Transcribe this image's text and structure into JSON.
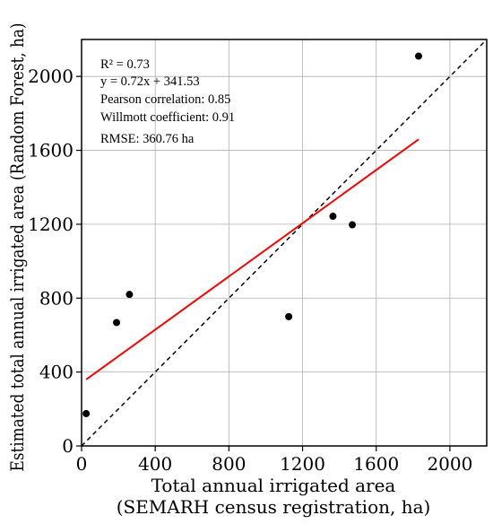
{
  "chart_data": {
    "type": "scatter",
    "xlabel_lines": [
      "Total annual irrigated area",
      "(SEMARH census registration, ha)"
    ],
    "ylabel": "Estimated total annual irrigated area (Random Forest, ha)",
    "xlim": [
      0,
      2200
    ],
    "ylim": [
      0,
      2200
    ],
    "xticks": [
      0,
      400,
      800,
      1200,
      1600,
      2000
    ],
    "yticks": [
      0,
      400,
      800,
      1200,
      1600,
      2000
    ],
    "grid": true,
    "points": [
      {
        "x": 25,
        "y": 175
      },
      {
        "x": 190,
        "y": 668
      },
      {
        "x": 260,
        "y": 820
      },
      {
        "x": 1125,
        "y": 700
      },
      {
        "x": 1365,
        "y": 1243
      },
      {
        "x": 1470,
        "y": 1197
      },
      {
        "x": 1830,
        "y": 2110
      }
    ],
    "regression": {
      "slope": 0.72,
      "intercept": 341.53,
      "x_range": [
        25,
        1830
      ],
      "color": "#ff0000"
    },
    "identity_line": {
      "style": "dashed",
      "color": "#000000"
    },
    "annotations": [
      "R² = 0.73",
      "y = 0.72x + 341.53",
      "Pearson correlation: 0.85",
      "Willmott coefficient: 0.91",
      "RMSE: 360.76 ha"
    ],
    "point_color": "#000000"
  }
}
